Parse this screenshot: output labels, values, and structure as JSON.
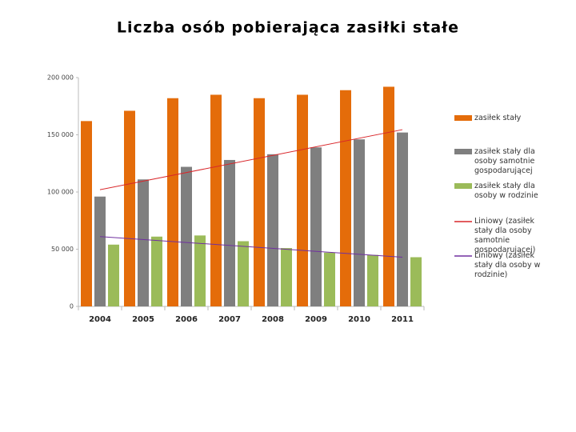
{
  "chart_data": {
    "type": "bar",
    "title": "Liczba osób pobierająca zasiłki stałe",
    "categories": [
      "2004",
      "2005",
      "2006",
      "2007",
      "2008",
      "2009",
      "2010",
      "2011"
    ],
    "series": [
      {
        "name": "zasiłek stały",
        "color": "#e46c0a",
        "values": [
          162000,
          171000,
          182000,
          185000,
          182000,
          185000,
          189000,
          192000
        ]
      },
      {
        "name": "zasiłek stały dla osoby samotnie gospodarującej",
        "color": "#7f7f7f",
        "values": [
          96000,
          111000,
          122000,
          128000,
          133000,
          139000,
          146000,
          152000
        ]
      },
      {
        "name": "zasiłek stały dla osoby w rodzinie",
        "color": "#9bbb59",
        "values": [
          54000,
          61000,
          62000,
          57000,
          51000,
          47000,
          45000,
          43000
        ]
      }
    ],
    "trendlines": [
      {
        "name": "Liniowy (zasiłek stały dla osoby samotnie gospodarującej)",
        "color": "#d9262a",
        "values": [
          102000,
          154500
        ]
      },
      {
        "name": "Liniowy (zasiłek stały dla osoby w rodzinie)",
        "color": "#7030a0",
        "values": [
          61000,
          43000
        ]
      }
    ],
    "ylim": [
      0,
      200000
    ],
    "yticks": [
      0,
      {
        "value": 50000,
        "label": "50 000"
      },
      {
        "value": 100000,
        "label": "100 000"
      },
      {
        "value": 150000,
        "label": "150 000"
      },
      {
        "value": 200000,
        "label": "200 000"
      }
    ]
  }
}
